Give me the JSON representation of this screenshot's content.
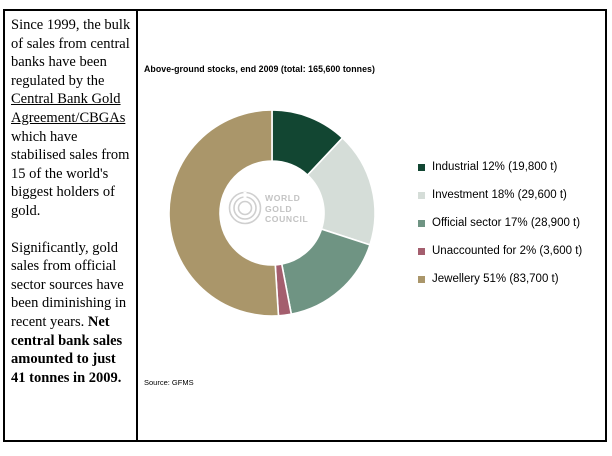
{
  "sidebar": {
    "para1_a": "Since 1999, the bulk of sales from central banks have been regulated by the ",
    "link_text": "Central Bank Gold Agreement/CBGAs",
    "para1_b": " which have stabilised sales from 15 of the world's biggest holders of gold.",
    "para2_a": "Significantly, gold sales from official sector sources have been diminishing in recent years. ",
    "para2_bold": "Net central bank sales amounted to just 41 tonnes in 2009."
  },
  "chart_data": {
    "type": "pie",
    "title": "Above-ground stocks, end 2009 (total: 165,600 tonnes)",
    "source": "Source:  GFMS",
    "hole": true,
    "slices": [
      {
        "name": "Industrial",
        "percent": 12,
        "tonnes": 19800,
        "label": "Industrial  12% (19,800 t)",
        "color": "#124632"
      },
      {
        "name": "Investment",
        "percent": 18,
        "tonnes": 29600,
        "label": "Investment  18% (29,600 t)",
        "color": "#d5ddd8"
      },
      {
        "name": "Official sector",
        "percent": 17,
        "tonnes": 28900,
        "label": "Official sector  17% (28,900 t)",
        "color": "#6f9483"
      },
      {
        "name": "Unaccounted for",
        "percent": 2,
        "tonnes": 3600,
        "label": "Unaccounted for 2% (3,600 t)",
        "color": "#a45e6e"
      },
      {
        "name": "Jewellery",
        "percent": 51,
        "tonnes": 83700,
        "label": "Jewellery 51% (83,700 t)",
        "color": "#aa966a"
      }
    ]
  },
  "logo": {
    "line1": "WORLD",
    "line2": "GOLD",
    "line3": "COUNCIL"
  }
}
